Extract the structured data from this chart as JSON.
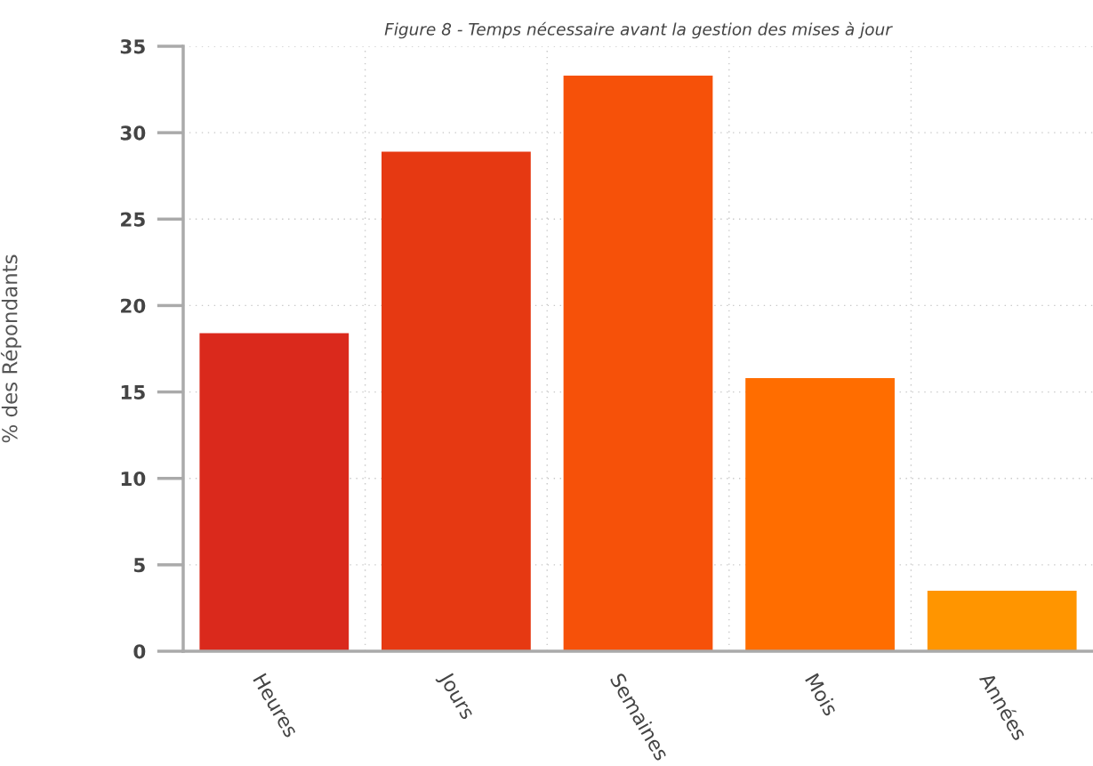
{
  "chart_data": {
    "type": "bar",
    "title": "Figure 8 - Temps nécessaire avant la gestion des mises à jour",
    "ylabel": "% des Répondants",
    "categories": [
      "Heures",
      "Jours",
      "Semaines",
      "Mois",
      "Années"
    ],
    "values": [
      18.4,
      28.9,
      33.3,
      15.8,
      3.5
    ],
    "colors": [
      "#da291c",
      "#e63912",
      "#f65109",
      "#ff6d00",
      "#ff9500"
    ],
    "ylim": [
      0,
      35
    ],
    "yticks": [
      0,
      5,
      10,
      15,
      20,
      25,
      30,
      35
    ],
    "grid": true
  }
}
